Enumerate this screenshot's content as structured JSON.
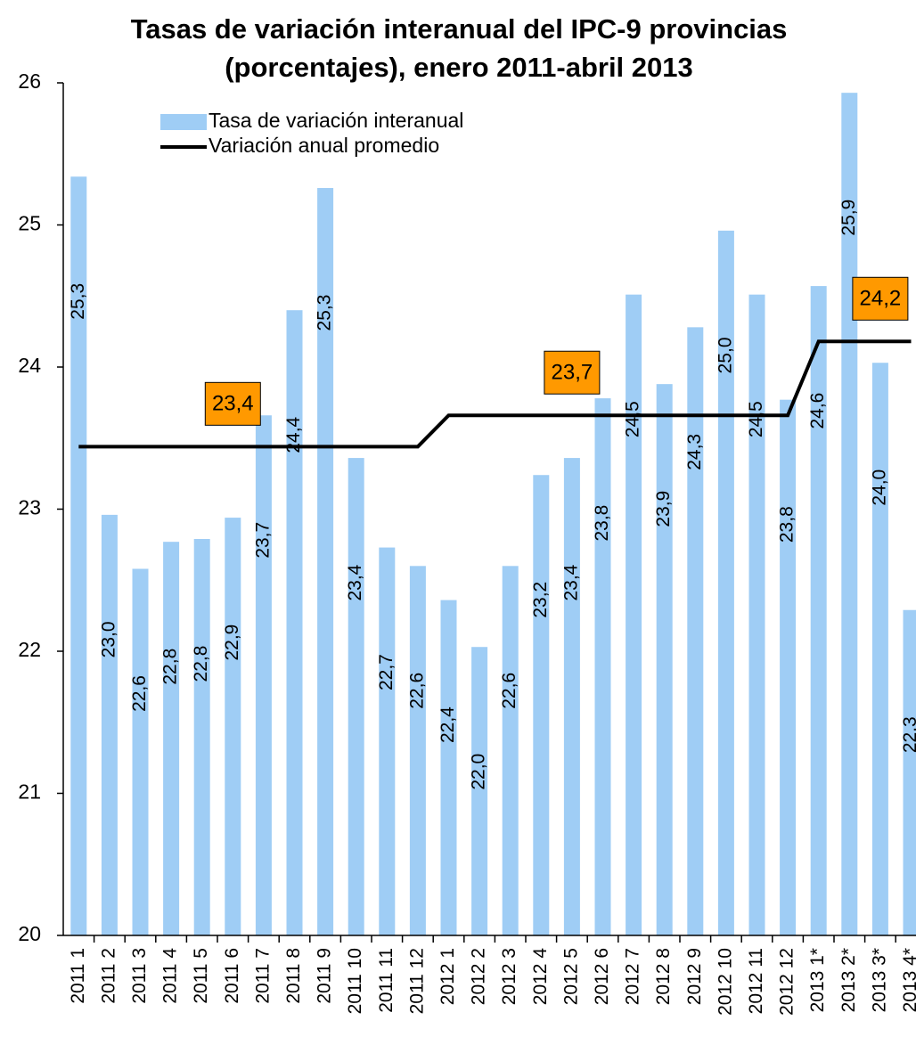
{
  "chart_data": {
    "type": "bar_line",
    "title": [
      "Tasas de variación interanual del IPC-9 provincias",
      "(porcentajes), enero 2011-abril 2013"
    ],
    "categories": [
      "2011 1",
      "2011 2",
      "2011 3",
      "2011 4",
      "2011 5",
      "2011 6",
      "2011 7",
      "2011 8",
      "2011 9",
      "2011 10",
      "2011 11",
      "2011 12",
      "2012 1",
      "2012 2",
      "2012 3",
      "2012 4",
      "2012 5",
      "2012 6",
      "2012 7",
      "2012 8",
      "2012 9",
      "2012 10",
      "2012 11",
      "2012 12",
      "2013 1*",
      "2013 2*",
      "2013 3*",
      "2013 4*"
    ],
    "series": [
      {
        "name": "Tasa de variación interanual",
        "type": "bar",
        "color": "#9fcdf5",
        "values": [
          25.34,
          22.96,
          22.58,
          22.77,
          22.79,
          22.94,
          23.66,
          24.4,
          25.26,
          23.36,
          22.73,
          22.6,
          22.36,
          22.03,
          22.6,
          23.24,
          23.36,
          23.78,
          24.51,
          23.88,
          24.28,
          24.96,
          24.51,
          23.77,
          24.57,
          25.93,
          24.03,
          22.29
        ],
        "value_labels": [
          "25,3",
          "23,0",
          "22,6",
          "22,8",
          "22,8",
          "22,9",
          "23,7",
          "24,4",
          "25,3",
          "23,4",
          "22,7",
          "22,6",
          "22,4",
          "22,0",
          "22,6",
          "23,2",
          "23,4",
          "23,8",
          "24,5",
          "23,9",
          "24,3",
          "25,0",
          "24,5",
          "23,8",
          "24,6",
          "25,9",
          "24,0",
          "22,3"
        ]
      },
      {
        "name": "Variación anual promedio",
        "type": "line",
        "color": "#000000",
        "values": [
          23.44,
          23.44,
          23.44,
          23.44,
          23.44,
          23.44,
          23.44,
          23.44,
          23.44,
          23.44,
          23.44,
          23.44,
          23.66,
          23.66,
          23.66,
          23.66,
          23.66,
          23.66,
          23.66,
          23.66,
          23.66,
          23.66,
          23.66,
          23.66,
          24.18,
          24.18,
          24.18,
          24.18
        ],
        "value_labels": [
          null,
          null,
          null,
          null,
          null,
          "23,4",
          null,
          null,
          null,
          null,
          null,
          null,
          null,
          null,
          null,
          null,
          "23,7",
          null,
          null,
          null,
          null,
          null,
          null,
          null,
          null,
          null,
          "24,2",
          null
        ]
      }
    ],
    "ylim": [
      20,
      26
    ],
    "yticks": [
      20,
      21,
      22,
      23,
      24,
      25,
      26
    ],
    "grid": false
  }
}
